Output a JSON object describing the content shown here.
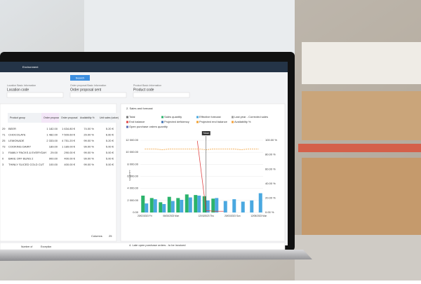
{
  "app": {
    "menu": "Environment",
    "search_button": "Search"
  },
  "filters": [
    {
      "group": "Location Basic Information",
      "label": "Location code"
    },
    {
      "group": "Order proposal Basic Information",
      "label": "Order proposal sent"
    },
    {
      "group": "Product Basic Information",
      "label": "Product code"
    }
  ],
  "table": {
    "columns": [
      "Product group",
      "Order proposal",
      "Order proposal (value)",
      "Availability %",
      "Unit sales (value)"
    ],
    "rows": [
      [
        "29",
        "BEER",
        "1 182.00",
        "1 634.80 €",
        "74.00 %",
        "5.20 €"
      ],
      [
        "71",
        "CHOCOLATE",
        "1 482.00",
        "7 509.60 €",
        "29.00 %",
        "6.60 €"
      ],
      [
        "25",
        "LEMONADE",
        "2 333.00",
        "4 751.20 €",
        "99.00 %",
        "5.20 €"
      ],
      [
        "73",
        "COOKING DAIRY",
        "189.00",
        "1 189.00 €",
        "99.00 %",
        "5.00 €"
      ],
      [
        "1",
        "FAMILY PACKS & EVERYDAY",
        "29.00",
        "290.00 €",
        "99.00 %",
        "5.00 €"
      ],
      [
        "0",
        "BAKE OFF BUNS 2",
        "900.00",
        "400.00 €",
        "99.00 %",
        "5.00 €"
      ],
      [
        "3",
        "THINLY SLICED COLD CUT",
        "100.00",
        "400.00 €",
        "99.00 %",
        "5.00 €"
      ]
    ],
    "footer": "Columns",
    "page_size": "25"
  },
  "chart": {
    "type": "bar",
    "title": "2. Sales and forecast",
    "y_label": "QUANTITY",
    "annotation": "Now",
    "annotation_index": 7,
    "categories": [
      "20/02/2023 Fri",
      null,
      null,
      "06/03/2023 Mon",
      null,
      null,
      null,
      "12/03/2023 Thu",
      null,
      null,
      "20/03/2023 Sun",
      null,
      null,
      "12/05/2023 Mon"
    ],
    "series": [
      {
        "name": "Total",
        "color": "#777777"
      },
      {
        "name": "Sales quantity",
        "color": "#2bb36b",
        "kind": "bar",
        "values": [
          2800,
          2400,
          1700,
          2600,
          2400,
          3000,
          2900,
          2700,
          2300,
          null,
          null,
          null,
          null,
          null
        ]
      },
      {
        "name": "Effective forecast",
        "color": "#4aa8e0",
        "kind": "bar",
        "values": [
          1500,
          2200,
          1400,
          1900,
          2100,
          2500,
          2800,
          2000,
          2400,
          1900,
          2200,
          1800,
          2000,
          3200
        ]
      },
      {
        "name": "Last year - Corrected sales",
        "color": "#9b9b9b"
      },
      {
        "name": "End balance",
        "color": "#e04848",
        "kind": "line",
        "values": [
          null,
          null,
          null,
          null,
          null,
          null,
          11900,
          300,
          200,
          200,
          null,
          null,
          null,
          null
        ]
      },
      {
        "name": "Projected deficiency",
        "color": "#3c6fb0"
      },
      {
        "name": "Projected end balance",
        "color": "#f0a030"
      },
      {
        "name": "Availability %",
        "color": "#f3a13a",
        "kind": "line",
        "axis": "y2",
        "values": [
          88,
          88,
          87,
          88,
          88,
          88,
          88,
          87,
          88,
          88,
          88,
          87,
          88,
          88
        ]
      },
      {
        "name": "Open purchase orders quantity",
        "color": "#5b6fb5"
      }
    ],
    "ylim": [
      0,
      12000
    ],
    "yticks": [
      {
        "value": 0,
        "label": "0.00"
      },
      {
        "value": 2000,
        "label": "2 000.00"
      },
      {
        "value": 4000,
        "label": "4 000.00"
      },
      {
        "value": 6000,
        "label": "6 000.00"
      },
      {
        "value": 8000,
        "label": "8 000.00"
      },
      {
        "value": 10000,
        "label": "10 000.00"
      },
      {
        "value": 12000,
        "label": "12 000.00"
      }
    ],
    "y2lim": [
      0,
      100
    ],
    "y2ticks": [
      {
        "value": 0,
        "label": "0.00 %"
      },
      {
        "value": 20,
        "label": "20.00 %"
      },
      {
        "value": 40,
        "label": "40.00 %"
      },
      {
        "value": 60,
        "label": "60.00 %"
      },
      {
        "value": 80,
        "label": "80.00 %"
      },
      {
        "value": 100,
        "label": "100.00 %"
      }
    ],
    "grid": true
  },
  "bottom_panel": {
    "title": "4. Late open purchase orders - to be invoiced",
    "columns": [
      "Number of",
      "Exception"
    ]
  }
}
